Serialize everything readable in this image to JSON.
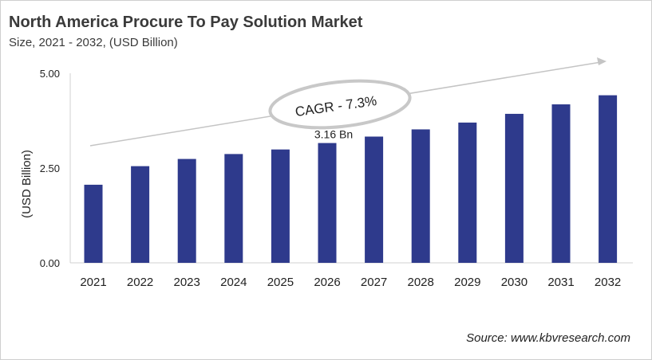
{
  "chart_data": {
    "type": "bar",
    "title": "North America Procure To Pay Solution Market",
    "subtitle": "Size, 2021 - 2032, (USD Billion)",
    "xlabel": "",
    "ylabel": "(USD Billion)",
    "categories": [
      "2021",
      "2022",
      "2023",
      "2024",
      "2025",
      "2026",
      "2027",
      "2028",
      "2029",
      "2030",
      "2031",
      "2032"
    ],
    "values": [
      2.06,
      2.55,
      2.74,
      2.87,
      2.99,
      3.16,
      3.33,
      3.52,
      3.7,
      3.93,
      4.18,
      4.42
    ],
    "ylim": [
      0,
      5
    ],
    "yticks": [
      "0.00",
      "2.50",
      "5.00"
    ],
    "data_labels": [
      {
        "category": "2026",
        "text": "3.16 Bn"
      }
    ],
    "annotation": "CAGR - 7.3%",
    "bar_color": "#2e3a8c",
    "grid": false,
    "legend": "none"
  },
  "source": "Source: www.kbvresearch.com"
}
